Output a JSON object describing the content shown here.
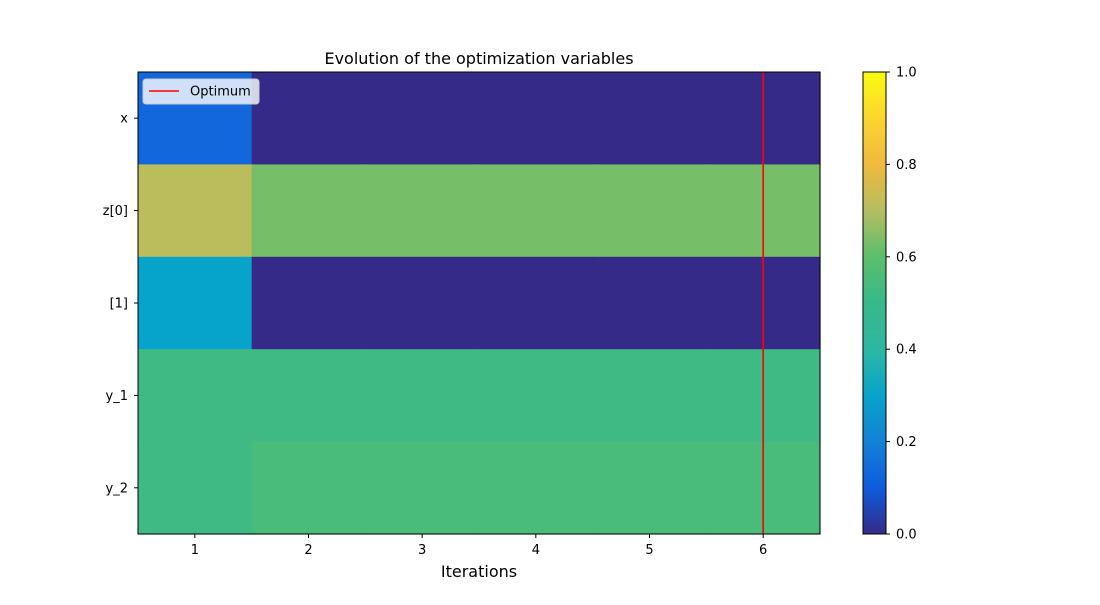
{
  "chart_data": {
    "type": "heatmap",
    "title": "Evolution of the optimization variables",
    "xlabel": "Iterations",
    "ylabel": "",
    "x": [
      1,
      2,
      3,
      4,
      5,
      6
    ],
    "rows": [
      "x",
      "z[0]",
      "[1]",
      "y_1",
      "y_2"
    ],
    "values": [
      [
        0.13,
        0.0,
        0.0,
        0.0,
        0.0,
        0.0
      ],
      [
        0.71,
        0.63,
        0.63,
        0.63,
        0.63,
        0.63
      ],
      [
        0.3,
        0.0,
        0.0,
        0.0,
        0.0,
        0.0
      ],
      [
        0.52,
        0.52,
        0.52,
        0.52,
        0.52,
        0.52
      ],
      [
        0.52,
        0.55,
        0.55,
        0.55,
        0.55,
        0.55
      ]
    ],
    "colorbar": {
      "min": 0.0,
      "max": 1.0,
      "ticks": [
        "0.0",
        "0.2",
        "0.4",
        "0.6",
        "0.8",
        "1.0"
      ],
      "colormap": "parula"
    },
    "optimum": {
      "x": 6,
      "label": "Optimum",
      "color": "#ff0000"
    },
    "legend": {
      "placement": "top-left",
      "entries": [
        "Optimum"
      ]
    },
    "grid": false
  }
}
